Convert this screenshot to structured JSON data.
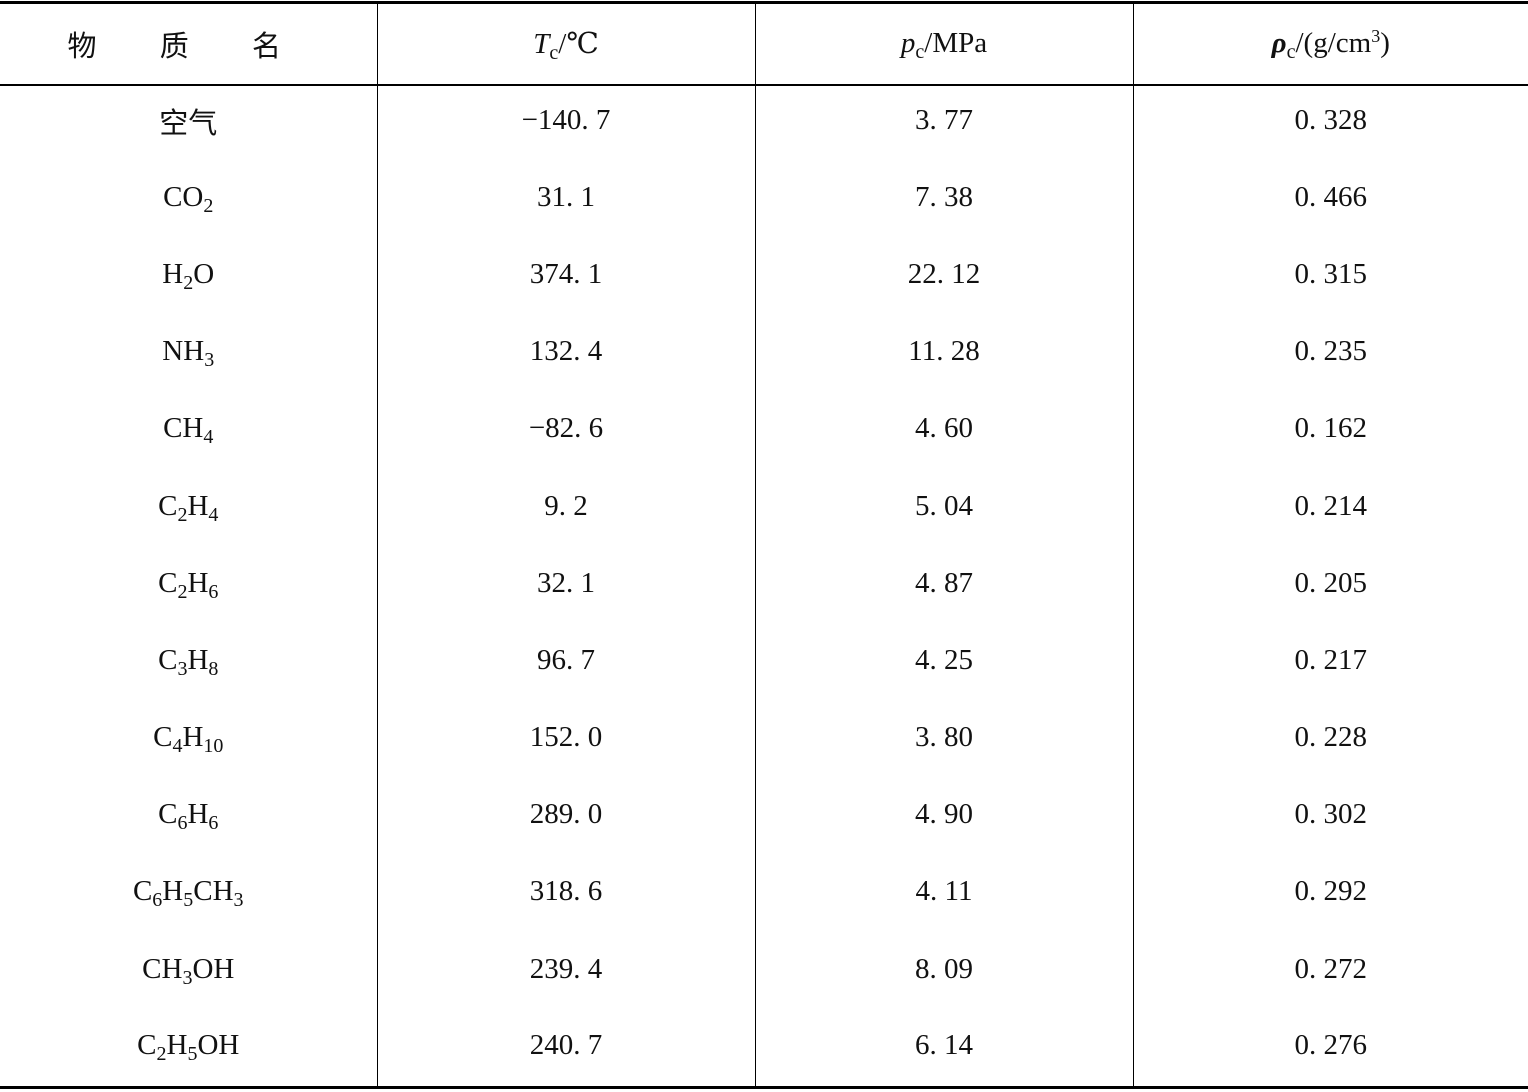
{
  "table": {
    "headers": {
      "name": "物 质 名",
      "tc": {
        "sym": "T",
        "sub": "c",
        "unit": "/℃"
      },
      "pc": {
        "sym": "p",
        "sub": "c",
        "unit": "/MPa"
      },
      "rho": {
        "sym": "ρ",
        "sub": "c",
        "unit": "/(g/cm",
        "sup": "3",
        "close": ")"
      }
    },
    "rows": [
      {
        "name": [
          [
            "t",
            "空气"
          ]
        ],
        "tc": "−140. 7",
        "pc": "3. 77",
        "rho": "0. 328"
      },
      {
        "name": [
          [
            "t",
            "CO"
          ],
          [
            "s",
            "2"
          ]
        ],
        "tc": "31. 1",
        "pc": "7. 38",
        "rho": "0. 466"
      },
      {
        "name": [
          [
            "t",
            "H"
          ],
          [
            "s",
            "2"
          ],
          [
            "t",
            "O"
          ]
        ],
        "tc": "374. 1",
        "pc": "22. 12",
        "rho": "0. 315"
      },
      {
        "name": [
          [
            "t",
            "NH"
          ],
          [
            "s",
            "3"
          ]
        ],
        "tc": "132. 4",
        "pc": "11. 28",
        "rho": "0. 235"
      },
      {
        "name": [
          [
            "t",
            "CH"
          ],
          [
            "s",
            "4"
          ]
        ],
        "tc": "−82. 6",
        "pc": "4. 60",
        "rho": "0. 162"
      },
      {
        "name": [
          [
            "t",
            "C"
          ],
          [
            "s",
            "2"
          ],
          [
            "t",
            "H"
          ],
          [
            "s",
            "4"
          ]
        ],
        "tc": "9. 2",
        "pc": "5. 04",
        "rho": "0. 214"
      },
      {
        "name": [
          [
            "t",
            "C"
          ],
          [
            "s",
            "2"
          ],
          [
            "t",
            "H"
          ],
          [
            "s",
            "6"
          ]
        ],
        "tc": "32. 1",
        "pc": "4. 87",
        "rho": "0. 205"
      },
      {
        "name": [
          [
            "t",
            "C"
          ],
          [
            "s",
            "3"
          ],
          [
            "t",
            "H"
          ],
          [
            "s",
            "8"
          ]
        ],
        "tc": "96. 7",
        "pc": "4. 25",
        "rho": "0. 217"
      },
      {
        "name": [
          [
            "t",
            "C"
          ],
          [
            "s",
            "4"
          ],
          [
            "t",
            "H"
          ],
          [
            "s",
            "10"
          ]
        ],
        "tc": "152. 0",
        "pc": "3. 80",
        "rho": "0. 228"
      },
      {
        "name": [
          [
            "t",
            "C"
          ],
          [
            "s",
            "6"
          ],
          [
            "t",
            "H"
          ],
          [
            "s",
            "6"
          ]
        ],
        "tc": "289. 0",
        "pc": "4. 90",
        "rho": "0. 302"
      },
      {
        "name": [
          [
            "t",
            "C"
          ],
          [
            "s",
            "6"
          ],
          [
            "t",
            "H"
          ],
          [
            "s",
            "5"
          ],
          [
            "t",
            "CH"
          ],
          [
            "s",
            "3"
          ]
        ],
        "tc": "318. 6",
        "pc": "4. 11",
        "rho": "0. 292"
      },
      {
        "name": [
          [
            "t",
            "CH"
          ],
          [
            "s",
            "3"
          ],
          [
            "t",
            "OH"
          ]
        ],
        "tc": "239. 4",
        "pc": "8. 09",
        "rho": "0. 272"
      },
      {
        "name": [
          [
            "t",
            "C"
          ],
          [
            "s",
            "2"
          ],
          [
            "t",
            "H"
          ],
          [
            "s",
            "5"
          ],
          [
            "t",
            "OH"
          ]
        ],
        "tc": "240. 7",
        "pc": "6. 14",
        "rho": "0. 276"
      }
    ]
  }
}
